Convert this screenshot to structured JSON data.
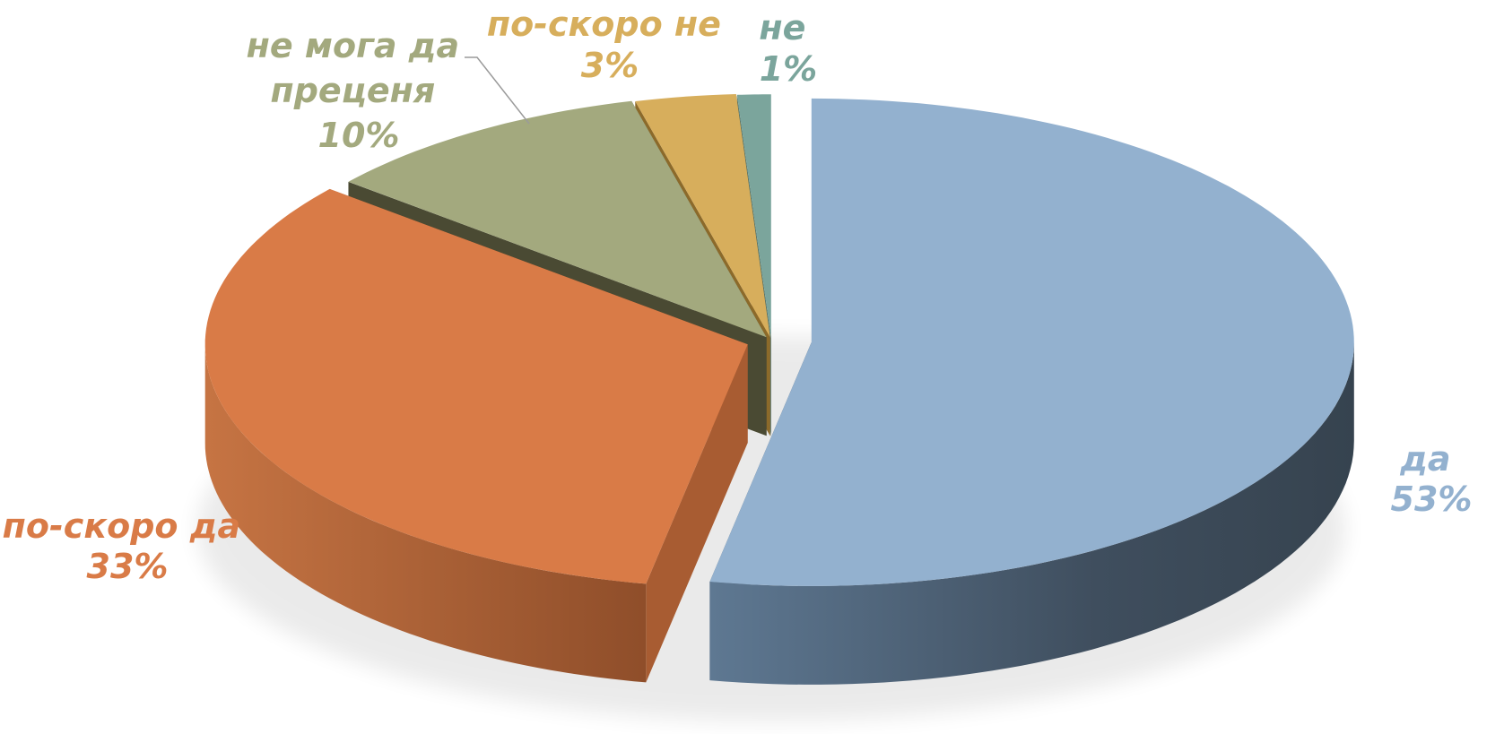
{
  "chart_data": {
    "type": "pie",
    "title": "",
    "slices": [
      {
        "label": "да",
        "value": 53,
        "value_label": "53%",
        "color": "#93B1CF",
        "side_color": "#3B4A58"
      },
      {
        "label": "по-скоро да",
        "value": 33,
        "value_label": "33%",
        "color": "#D97B47",
        "side_color": "#A85C32"
      },
      {
        "label": "не мога да преценя",
        "label_lines": [
          "не мога да",
          "преценя"
        ],
        "value": 10,
        "value_label": "10%",
        "color": "#A3A97E",
        "side_color": "#4A4A33"
      },
      {
        "label": "по-скоро не",
        "value": 3,
        "value_label": "3%",
        "color": "#D7AE5C",
        "side_color": "#8C6A2A"
      },
      {
        "label": "не",
        "value": 1,
        "value_label": "1%",
        "color": "#7BA59C",
        "side_color": "#4F7069"
      }
    ],
    "legend": "none",
    "style": "3d-exploded"
  }
}
